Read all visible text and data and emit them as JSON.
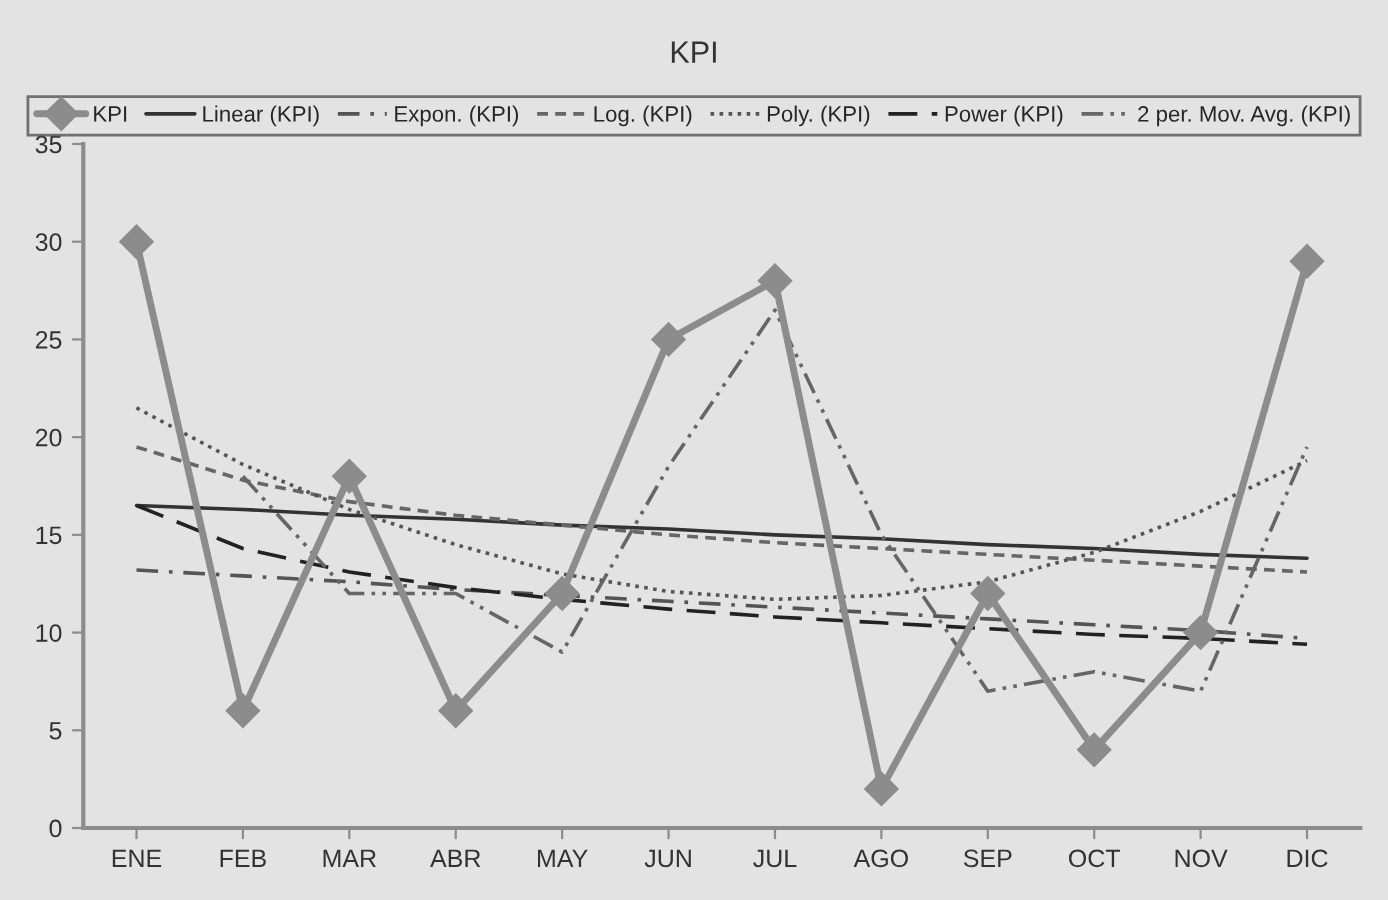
{
  "chart_data": {
    "type": "line",
    "title": "KPI",
    "categories": [
      "ENE",
      "FEB",
      "MAR",
      "ABR",
      "MAY",
      "JUN",
      "JUL",
      "AGO",
      "SEP",
      "OCT",
      "NOV",
      "DIC"
    ],
    "series": [
      {
        "name": "KPI",
        "color": "#8c8c8c",
        "marker": "diamond",
        "line_style": "solid",
        "values": [
          30,
          6,
          18,
          6,
          12,
          25,
          28,
          2,
          12,
          4,
          10,
          29
        ]
      },
      {
        "name": "Linear (KPI)",
        "color": "#333333",
        "marker": "none",
        "line_style": "solid",
        "values": [
          16.5,
          16.3,
          16.0,
          15.8,
          15.5,
          15.3,
          15.0,
          14.8,
          14.5,
          14.3,
          14.0,
          13.8
        ]
      },
      {
        "name": "Expon. (KPI)",
        "color": "#555555",
        "marker": "none",
        "line_style": "dashdot",
        "values": [
          13.2,
          12.9,
          12.6,
          12.2,
          11.9,
          11.6,
          11.3,
          11.0,
          10.7,
          10.4,
          10.1,
          9.7
        ]
      },
      {
        "name": "Log. (KPI)",
        "color": "#666666",
        "marker": "none",
        "line_style": "dashed",
        "values": [
          19.5,
          17.8,
          16.7,
          16.0,
          15.5,
          15.0,
          14.6,
          14.3,
          14.0,
          13.7,
          13.4,
          13.1
        ]
      },
      {
        "name": "Poly. (KPI)",
        "color": "#555555",
        "marker": "none",
        "line_style": "dotted",
        "values": [
          21.5,
          18.6,
          16.3,
          14.5,
          13.0,
          12.1,
          11.7,
          11.9,
          12.6,
          14.1,
          16.2,
          18.8
        ]
      },
      {
        "name": "Power (KPI)",
        "color": "#222222",
        "marker": "none",
        "line_style": "longdash",
        "values": [
          16.5,
          14.3,
          13.1,
          12.3,
          11.7,
          11.2,
          10.8,
          10.5,
          10.2,
          9.9,
          9.7,
          9.4
        ]
      },
      {
        "name": "2 per. Mov. Avg. (KPI)",
        "color": "#666666",
        "marker": "none",
        "line_style": "dashdotdot",
        "values": [
          null,
          18,
          12,
          12,
          9,
          18.5,
          26.5,
          15,
          7,
          8,
          7,
          19.5
        ]
      }
    ],
    "ylim": [
      0,
      35
    ],
    "yticks": [
      0,
      5,
      10,
      15,
      20,
      25,
      30,
      35
    ],
    "grid": false,
    "legend": "top"
  }
}
